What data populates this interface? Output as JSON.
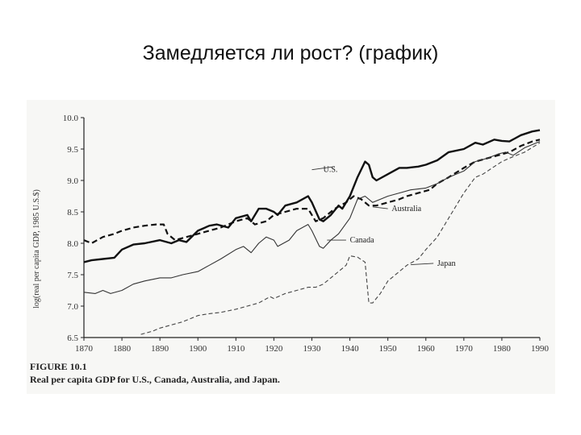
{
  "slide": {
    "title": "Замедляется ли рост? (график)"
  },
  "figure": {
    "caption_number": "FIGURE 10.1",
    "caption_text": "Real per capita GDP for U.S., Canada, Australia, and Japan."
  },
  "chart_data": {
    "type": "line",
    "title": "",
    "xlabel": "",
    "ylabel": "log(real per capita GDP, 1985 U.S.$)",
    "xlim": [
      1870,
      1990
    ],
    "ylim": [
      6.5,
      10.0
    ],
    "x_ticks": [
      1870,
      1880,
      1890,
      1900,
      1910,
      1920,
      1930,
      1940,
      1950,
      1960,
      1970,
      1980,
      1990
    ],
    "y_ticks": [
      "6.5",
      "7.0",
      "7.5",
      "8.0",
      "8.5",
      "9.0",
      "9.5",
      "10.0"
    ],
    "grid": false,
    "legend": "inline labels",
    "series": [
      {
        "name": "U.S.",
        "style": "solid-thick",
        "color": "#111111",
        "label_at": [
          1933,
          9.17
        ],
        "points": [
          [
            1870,
            7.7
          ],
          [
            1872,
            7.73
          ],
          [
            1875,
            7.75
          ],
          [
            1878,
            7.77
          ],
          [
            1880,
            7.9
          ],
          [
            1883,
            7.98
          ],
          [
            1886,
            8.0
          ],
          [
            1890,
            8.05
          ],
          [
            1893,
            8.0
          ],
          [
            1895,
            8.05
          ],
          [
            1897,
            8.02
          ],
          [
            1900,
            8.2
          ],
          [
            1903,
            8.28
          ],
          [
            1905,
            8.3
          ],
          [
            1908,
            8.25
          ],
          [
            1910,
            8.4
          ],
          [
            1913,
            8.45
          ],
          [
            1914,
            8.35
          ],
          [
            1916,
            8.55
          ],
          [
            1918,
            8.55
          ],
          [
            1920,
            8.5
          ],
          [
            1921,
            8.45
          ],
          [
            1923,
            8.6
          ],
          [
            1926,
            8.65
          ],
          [
            1929,
            8.75
          ],
          [
            1930,
            8.65
          ],
          [
            1932,
            8.38
          ],
          [
            1933,
            8.35
          ],
          [
            1935,
            8.45
          ],
          [
            1937,
            8.6
          ],
          [
            1938,
            8.55
          ],
          [
            1940,
            8.75
          ],
          [
            1942,
            9.05
          ],
          [
            1944,
            9.3
          ],
          [
            1945,
            9.25
          ],
          [
            1946,
            9.05
          ],
          [
            1947,
            9.0
          ],
          [
            1950,
            9.1
          ],
          [
            1953,
            9.2
          ],
          [
            1955,
            9.2
          ],
          [
            1958,
            9.22
          ],
          [
            1960,
            9.25
          ],
          [
            1963,
            9.32
          ],
          [
            1966,
            9.45
          ],
          [
            1970,
            9.5
          ],
          [
            1973,
            9.6
          ],
          [
            1975,
            9.57
          ],
          [
            1978,
            9.65
          ],
          [
            1980,
            9.63
          ],
          [
            1982,
            9.62
          ],
          [
            1985,
            9.72
          ],
          [
            1988,
            9.78
          ],
          [
            1990,
            9.8
          ]
        ]
      },
      {
        "name": "Australia",
        "style": "dashed-thick",
        "color": "#111111",
        "label_at": [
          1951,
          8.55
        ],
        "points": [
          [
            1870,
            8.05
          ],
          [
            1872,
            8.0
          ],
          [
            1875,
            8.1
          ],
          [
            1878,
            8.15
          ],
          [
            1880,
            8.2
          ],
          [
            1883,
            8.25
          ],
          [
            1886,
            8.28
          ],
          [
            1889,
            8.3
          ],
          [
            1891,
            8.3
          ],
          [
            1892,
            8.15
          ],
          [
            1894,
            8.05
          ],
          [
            1897,
            8.1
          ],
          [
            1900,
            8.15
          ],
          [
            1903,
            8.2
          ],
          [
            1906,
            8.25
          ],
          [
            1910,
            8.35
          ],
          [
            1913,
            8.4
          ],
          [
            1915,
            8.3
          ],
          [
            1918,
            8.35
          ],
          [
            1920,
            8.45
          ],
          [
            1923,
            8.5
          ],
          [
            1926,
            8.55
          ],
          [
            1929,
            8.55
          ],
          [
            1931,
            8.35
          ],
          [
            1933,
            8.4
          ],
          [
            1936,
            8.55
          ],
          [
            1939,
            8.65
          ],
          [
            1941,
            8.75
          ],
          [
            1943,
            8.7
          ],
          [
            1945,
            8.6
          ],
          [
            1947,
            8.6
          ],
          [
            1950,
            8.65
          ],
          [
            1953,
            8.7
          ],
          [
            1955,
            8.75
          ],
          [
            1958,
            8.8
          ],
          [
            1961,
            8.85
          ],
          [
            1963,
            8.95
          ],
          [
            1966,
            9.05
          ],
          [
            1970,
            9.2
          ],
          [
            1973,
            9.3
          ],
          [
            1976,
            9.35
          ],
          [
            1979,
            9.4
          ],
          [
            1982,
            9.45
          ],
          [
            1985,
            9.55
          ],
          [
            1988,
            9.62
          ],
          [
            1990,
            9.65
          ]
        ]
      },
      {
        "name": "Canada",
        "style": "solid-thin",
        "color": "#333333",
        "label_at": [
          1940,
          8.05
        ],
        "points": [
          [
            1870,
            7.22
          ],
          [
            1873,
            7.2
          ],
          [
            1875,
            7.25
          ],
          [
            1877,
            7.2
          ],
          [
            1880,
            7.25
          ],
          [
            1883,
            7.35
          ],
          [
            1886,
            7.4
          ],
          [
            1890,
            7.45
          ],
          [
            1893,
            7.45
          ],
          [
            1896,
            7.5
          ],
          [
            1900,
            7.55
          ],
          [
            1903,
            7.65
          ],
          [
            1906,
            7.75
          ],
          [
            1910,
            7.9
          ],
          [
            1912,
            7.95
          ],
          [
            1914,
            7.85
          ],
          [
            1916,
            8.0
          ],
          [
            1918,
            8.1
          ],
          [
            1920,
            8.05
          ],
          [
            1921,
            7.95
          ],
          [
            1924,
            8.05
          ],
          [
            1926,
            8.2
          ],
          [
            1929,
            8.3
          ],
          [
            1930,
            8.2
          ],
          [
            1932,
            7.95
          ],
          [
            1933,
            7.92
          ],
          [
            1935,
            8.05
          ],
          [
            1937,
            8.15
          ],
          [
            1940,
            8.4
          ],
          [
            1942,
            8.7
          ],
          [
            1944,
            8.75
          ],
          [
            1946,
            8.65
          ],
          [
            1948,
            8.7
          ],
          [
            1950,
            8.75
          ],
          [
            1953,
            8.8
          ],
          [
            1956,
            8.85
          ],
          [
            1960,
            8.88
          ],
          [
            1963,
            8.95
          ],
          [
            1966,
            9.05
          ],
          [
            1970,
            9.15
          ],
          [
            1973,
            9.3
          ],
          [
            1976,
            9.35
          ],
          [
            1979,
            9.42
          ],
          [
            1981,
            9.45
          ],
          [
            1983,
            9.4
          ],
          [
            1986,
            9.52
          ],
          [
            1990,
            9.62
          ]
        ]
      },
      {
        "name": "Japan",
        "style": "dashed-thin",
        "color": "#444444",
        "label_at": [
          1963,
          7.68
        ],
        "points": [
          [
            1885,
            6.55
          ],
          [
            1888,
            6.6
          ],
          [
            1890,
            6.65
          ],
          [
            1893,
            6.7
          ],
          [
            1896,
            6.75
          ],
          [
            1900,
            6.85
          ],
          [
            1903,
            6.88
          ],
          [
            1906,
            6.9
          ],
          [
            1910,
            6.95
          ],
          [
            1913,
            7.0
          ],
          [
            1916,
            7.05
          ],
          [
            1919,
            7.15
          ],
          [
            1920,
            7.12
          ],
          [
            1923,
            7.2
          ],
          [
            1926,
            7.25
          ],
          [
            1929,
            7.3
          ],
          [
            1931,
            7.3
          ],
          [
            1933,
            7.35
          ],
          [
            1935,
            7.45
          ],
          [
            1937,
            7.55
          ],
          [
            1939,
            7.65
          ],
          [
            1940,
            7.8
          ],
          [
            1942,
            7.78
          ],
          [
            1944,
            7.7
          ],
          [
            1945,
            7.05
          ],
          [
            1946,
            7.05
          ],
          [
            1948,
            7.2
          ],
          [
            1950,
            7.4
          ],
          [
            1953,
            7.55
          ],
          [
            1955,
            7.65
          ],
          [
            1958,
            7.75
          ],
          [
            1960,
            7.9
          ],
          [
            1963,
            8.1
          ],
          [
            1966,
            8.4
          ],
          [
            1970,
            8.8
          ],
          [
            1973,
            9.05
          ],
          [
            1975,
            9.1
          ],
          [
            1978,
            9.22
          ],
          [
            1980,
            9.3
          ],
          [
            1983,
            9.38
          ],
          [
            1986,
            9.45
          ],
          [
            1990,
            9.6
          ]
        ]
      }
    ]
  }
}
